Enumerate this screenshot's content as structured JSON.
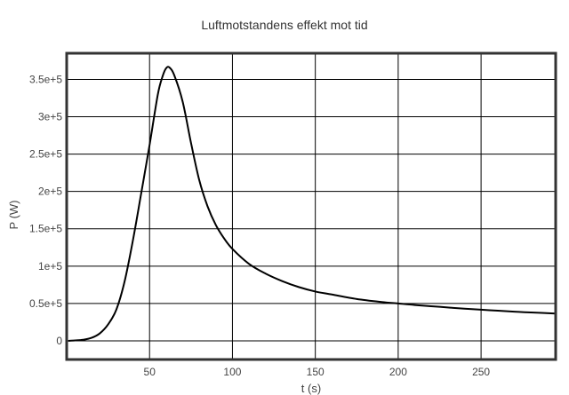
{
  "chart_data": {
    "type": "line",
    "title": "Luftmotstandens effekt mot tid",
    "xlabel": "t (s)",
    "ylabel": "P (W)",
    "xlim": [
      0,
      295
    ],
    "ylim": [
      -25000,
      385000
    ],
    "x_ticks": [
      50,
      100,
      150,
      200,
      250
    ],
    "x_tick_labels": [
      "50",
      "100",
      "150",
      "200",
      "250"
    ],
    "y_ticks": [
      0,
      50000,
      100000,
      150000,
      200000,
      250000,
      300000,
      350000
    ],
    "y_tick_labels": [
      "0",
      "0.5e+5",
      "1e+5",
      "1.5e+5",
      "2e+5",
      "2.5e+5",
      "3e+5",
      "3.5e+5"
    ],
    "grid": true,
    "legend": "none",
    "colors": {
      "line": "#000000",
      "grid": "#000000",
      "frame": "#333333"
    },
    "series": [
      {
        "x": [
          1,
          5,
          10,
          15,
          20,
          25,
          30,
          35,
          40,
          45,
          50,
          55,
          58,
          60,
          62,
          65,
          70,
          75,
          80,
          85,
          90,
          95,
          100,
          110,
          120,
          130,
          140,
          150,
          160,
          175,
          190,
          200,
          210,
          225,
          240,
          255,
          270,
          280,
          295
        ],
        "y": [
          0,
          500,
          1500,
          4000,
          10000,
          22000,
          42000,
          80000,
          135000,
          198000,
          262000,
          330000,
          355000,
          365000,
          366000,
          355000,
          320000,
          265000,
          215000,
          180000,
          155000,
          137000,
          123000,
          103000,
          90000,
          80000,
          72000,
          66000,
          62000,
          56000,
          52000,
          50000,
          48000,
          45500,
          43000,
          41000,
          39000,
          38000,
          36500
        ]
      }
    ]
  }
}
